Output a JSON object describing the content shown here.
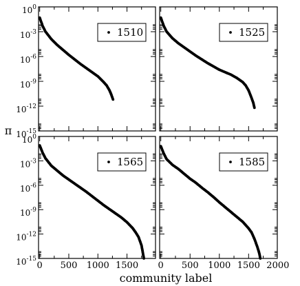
{
  "chart_data": [
    {
      "type": "scatter",
      "legend_position": "top-right",
      "series": [
        {
          "name": "1510",
          "x": [
            0,
            50,
            100,
            200,
            300,
            400,
            500,
            600,
            700,
            800,
            900,
            1000,
            1050,
            1100,
            1150,
            1200,
            1230,
            1260
          ],
          "y": [
            -1.3,
            -2.3,
            -3.0,
            -3.9,
            -4.6,
            -5.2,
            -5.8,
            -6.35,
            -6.9,
            -7.4,
            -7.9,
            -8.4,
            -8.75,
            -9.1,
            -9.5,
            -10.1,
            -10.6,
            -11.2
          ]
        }
      ],
      "xlim": [
        -20,
        1990
      ],
      "ylim": [
        -15,
        0
      ],
      "log_y": true,
      "x_ticks": [
        0,
        500,
        1000,
        1500,
        2000
      ],
      "x_tick_labels": [
        "",
        "",
        "",
        "",
        ""
      ],
      "y_ticks": [
        0,
        -3,
        -6,
        -9,
        -12,
        -15
      ],
      "y_tick_labels": [
        "10",
        "10",
        "10",
        "10",
        "10",
        "10"
      ],
      "y_tick_exps": [
        "0",
        "-3",
        "-6",
        "-9",
        "-12",
        "-15"
      ]
    },
    {
      "type": "scatter",
      "legend_position": "top-right",
      "series": [
        {
          "name": "1525",
          "x": [
            0,
            50,
            100,
            200,
            300,
            400,
            500,
            600,
            700,
            800,
            900,
            1000,
            1100,
            1200,
            1300,
            1400,
            1450,
            1500,
            1550,
            1580,
            1600
          ],
          "y": [
            -1.3,
            -2.3,
            -3.0,
            -3.8,
            -4.4,
            -4.9,
            -5.4,
            -5.9,
            -6.35,
            -6.8,
            -7.2,
            -7.6,
            -7.9,
            -8.2,
            -8.6,
            -9.1,
            -9.5,
            -10.1,
            -11.0,
            -11.6,
            -12.2
          ]
        }
      ],
      "xlim": [
        -20,
        1990
      ],
      "ylim": [
        -15,
        0
      ],
      "log_y": true,
      "x_ticks": [
        0,
        500,
        1000,
        1500,
        2000
      ],
      "x_tick_labels": [
        "",
        "",
        "",
        "",
        ""
      ],
      "y_ticks": [
        0,
        -3,
        -6,
        -9,
        -12,
        -15
      ],
      "y_tick_labels": [
        "",
        "",
        "",
        "",
        "",
        ""
      ],
      "y_tick_exps": [
        "",
        "",
        "",
        "",
        "",
        ""
      ]
    },
    {
      "type": "scatter",
      "legend_position": "top-right",
      "series": [
        {
          "name": "1565",
          "x": [
            0,
            50,
            100,
            200,
            300,
            400,
            500,
            600,
            700,
            800,
            900,
            1000,
            1100,
            1200,
            1300,
            1400,
            1500,
            1600,
            1650,
            1700,
            1750,
            1790
          ],
          "y": [
            -1.1,
            -2.0,
            -2.7,
            -3.6,
            -4.2,
            -4.8,
            -5.3,
            -5.8,
            -6.3,
            -6.8,
            -7.35,
            -7.9,
            -8.45,
            -8.95,
            -9.45,
            -9.95,
            -10.55,
            -11.3,
            -11.8,
            -12.4,
            -13.4,
            -15.0
          ]
        }
      ],
      "xlim": [
        -20,
        1990
      ],
      "ylim": [
        -15,
        0
      ],
      "log_y": true,
      "x_ticks": [
        0,
        500,
        1000,
        1500,
        2000
      ],
      "x_tick_labels": [
        "0",
        "500",
        "1000",
        "1500",
        ""
      ],
      "y_ticks": [
        0,
        -3,
        -6,
        -9,
        -12,
        -15
      ],
      "y_tick_labels": [
        "10",
        "10",
        "10",
        "10",
        "10",
        "10"
      ],
      "y_tick_exps": [
        "0",
        "-3",
        "-6",
        "-9",
        "-12",
        "-15"
      ]
    },
    {
      "type": "scatter",
      "legend_position": "top-right",
      "series": [
        {
          "name": "1585",
          "x": [
            0,
            50,
            100,
            200,
            300,
            400,
            500,
            600,
            700,
            800,
            900,
            1000,
            1100,
            1200,
            1300,
            1400,
            1500,
            1550,
            1600,
            1650,
            1680,
            1700
          ],
          "y": [
            -1.2,
            -2.1,
            -2.8,
            -3.5,
            -4.0,
            -4.6,
            -5.2,
            -5.7,
            -6.3,
            -6.85,
            -7.45,
            -8.1,
            -8.7,
            -9.3,
            -9.9,
            -10.5,
            -11.3,
            -11.8,
            -12.6,
            -13.6,
            -14.3,
            -15.0
          ]
        }
      ],
      "xlim": [
        -20,
        1990
      ],
      "ylim": [
        -15,
        0
      ],
      "log_y": true,
      "x_ticks": [
        0,
        500,
        1000,
        1500,
        2000
      ],
      "x_tick_labels": [
        "0",
        "500",
        "1000",
        "1500",
        "2000"
      ],
      "y_ticks": [
        0,
        -3,
        -6,
        -9,
        -12,
        -15
      ],
      "y_tick_labels": [
        "",
        "",
        "",
        "",
        "",
        ""
      ],
      "y_tick_exps": [
        "",
        "",
        "",
        "",
        "",
        ""
      ]
    }
  ],
  "xlabel": "community label",
  "ylabel": "π"
}
